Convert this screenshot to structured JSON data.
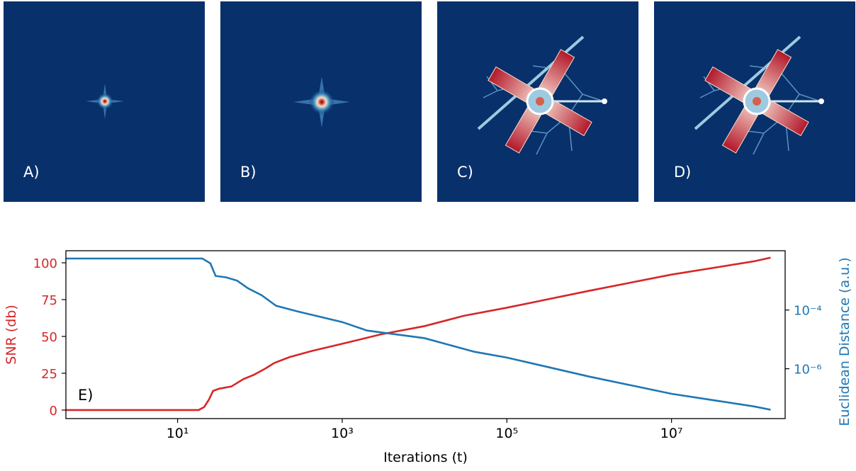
{
  "panels": [
    {
      "label": "A)"
    },
    {
      "label": "B)"
    },
    {
      "label": "C)"
    },
    {
      "label": "D)"
    }
  ],
  "chart_data": {
    "type": "line",
    "annotation": "E)",
    "xlabel": "Iterations (t)",
    "ylabel": "SNR (db)",
    "y2label": "Euclidean Distance (a.u.)",
    "xscale": "log",
    "y2scale": "log",
    "xlim": [
      0.44,
      240000000
    ],
    "ylim": [
      -5.8,
      108.2
    ],
    "y2lim": [
      2e-08,
      0.0105
    ],
    "xticks": [
      {
        "value": 10,
        "label": "10¹"
      },
      {
        "value": 1000,
        "label": "10³"
      },
      {
        "value": 100000,
        "label": "10⁵"
      },
      {
        "value": 10000000,
        "label": "10⁷"
      }
    ],
    "yticks": [
      0,
      25,
      50,
      75,
      100
    ],
    "y2ticks": [
      {
        "value": 0.0001,
        "label": "10⁻⁴"
      },
      {
        "value": 1e-06,
        "label": "10⁻⁶"
      }
    ],
    "series": [
      {
        "color": "#d62728",
        "axis": "y",
        "x": [
          0.44,
          18,
          21,
          24,
          27,
          32,
          45,
          63,
          85,
          115,
          150,
          230,
          420,
          1000,
          3000,
          10000,
          30000,
          100000,
          1000000,
          10000000,
          100000000,
          160000000
        ],
        "values": [
          0,
          0,
          2,
          7,
          13,
          14.5,
          16,
          21,
          24,
          28,
          32,
          36,
          40,
          45,
          51.5,
          57,
          64,
          69.5,
          81,
          92,
          101,
          103.5
        ]
      },
      {
        "color": "#1f77b4",
        "axis": "y2",
        "x": [
          0.44,
          20,
          25,
          29,
          39,
          53,
          71,
          105,
          157,
          285,
          1000,
          2000,
          10000,
          40000,
          100000,
          1000000,
          10000000,
          100000000,
          160000000
        ],
        "values": [
          0.0057,
          0.0057,
          0.0039,
          0.00145,
          0.0013,
          0.001,
          0.00056,
          0.00032,
          0.00014,
          9e-05,
          3.9e-05,
          2e-05,
          1.1e-05,
          3.8e-06,
          2.4e-06,
          5.4e-07,
          1.4e-07,
          5.2e-08,
          4e-08
        ]
      }
    ]
  }
}
